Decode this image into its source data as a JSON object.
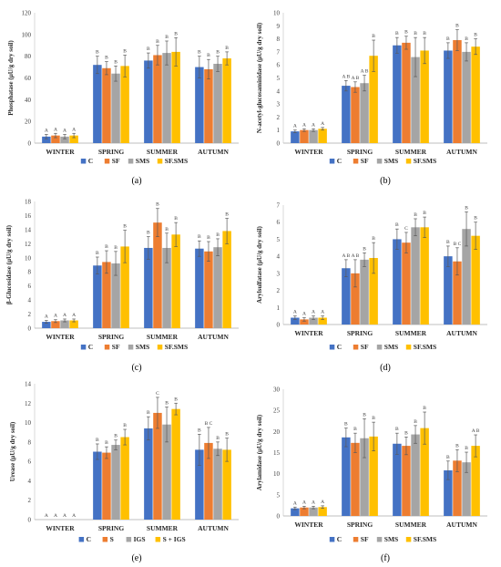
{
  "figure": {
    "colors": [
      "#4472C4",
      "#ED7D31",
      "#A5A5A5",
      "#FFC000"
    ],
    "error_bar_color": "#595959"
  },
  "chart_data": [
    {
      "type": "bar",
      "panel_label": "(a)",
      "ylabel": "Phosphatase (µU/g dry soil)",
      "ylim": [
        0,
        120
      ],
      "yticks": [
        0,
        20,
        40,
        60,
        80,
        100,
        120
      ],
      "grid": false,
      "legend_position": "bottom",
      "categories": [
        "WINTER",
        "SPRING",
        "SUMMER",
        "AUTUMN"
      ],
      "series": [
        {
          "name": "C",
          "values": [
            6,
            72,
            76,
            70
          ],
          "errors": [
            2,
            8,
            7,
            10
          ],
          "letters": [
            "A",
            "B",
            "B",
            "B"
          ]
        },
        {
          "name": "SF",
          "values": [
            7,
            69,
            81,
            68
          ],
          "errors": [
            2,
            6,
            9,
            9
          ],
          "letters": [
            "A",
            "B",
            "B",
            "B"
          ]
        },
        {
          "name": "SMS",
          "values": [
            6,
            64,
            83,
            73
          ],
          "errors": [
            2,
            7,
            11,
            7
          ],
          "letters": [
            "A",
            "B",
            "B",
            "B"
          ]
        },
        {
          "name": "SF.SMS",
          "values": [
            7,
            71,
            84,
            78
          ],
          "errors": [
            2,
            10,
            13,
            6
          ],
          "letters": [
            "A",
            "B",
            "B",
            "B"
          ]
        }
      ]
    },
    {
      "type": "bar",
      "panel_label": "(b)",
      "ylabel": "N-acetyl-glucosaminidase (µU/g dry soil)",
      "ylim": [
        0,
        10
      ],
      "yticks": [
        0,
        1,
        2,
        3,
        4,
        5,
        6,
        7,
        8,
        9,
        10
      ],
      "grid": false,
      "legend_position": "bottom",
      "categories": [
        "WINTER",
        "SPRING",
        "SUMMER",
        "AUTUMN"
      ],
      "series": [
        {
          "name": "C",
          "values": [
            0.9,
            4.4,
            7.5,
            7.1
          ],
          "errors": [
            0.1,
            0.4,
            0.6,
            0.6
          ],
          "letters": [
            "A",
            "A B",
            "B",
            "B"
          ]
        },
        {
          "name": "SF",
          "values": [
            1.0,
            4.3,
            7.7,
            7.9
          ],
          "errors": [
            0.1,
            0.4,
            0.5,
            0.8
          ],
          "letters": [
            "A",
            "A B",
            "B",
            "B"
          ]
        },
        {
          "name": "SMS",
          "values": [
            1.0,
            4.6,
            6.6,
            7.0
          ],
          "errors": [
            0.1,
            0.6,
            1.5,
            0.7
          ],
          "letters": [
            "A",
            "A B",
            "B",
            "B"
          ]
        },
        {
          "name": "SF.SMS",
          "values": [
            1.1,
            6.7,
            7.1,
            7.4
          ],
          "errors": [
            0.1,
            1.2,
            1.0,
            0.6
          ],
          "letters": [
            "A",
            "B",
            "B",
            "B"
          ]
        }
      ]
    },
    {
      "type": "bar",
      "panel_label": "(c)",
      "ylabel": "β-Glucosidase (µU/g dry soil)",
      "ylim": [
        0,
        18
      ],
      "yticks": [
        0,
        2,
        4,
        6,
        8,
        10,
        12,
        14,
        16,
        18
      ],
      "grid": false,
      "legend_position": "bottom",
      "categories": [
        "WINTER",
        "SPRING",
        "SUMMER",
        "AUTUMN"
      ],
      "series": [
        {
          "name": "C",
          "values": [
            0.9,
            8.9,
            11.4,
            11.3
          ],
          "errors": [
            0.2,
            1.2,
            1.6,
            1.1
          ],
          "letters": [
            "A",
            "B",
            "B",
            "B"
          ]
        },
        {
          "name": "SF",
          "values": [
            1.0,
            9.4,
            15.0,
            10.9
          ],
          "errors": [
            0.2,
            1.6,
            2.0,
            1.4
          ],
          "letters": [
            "A",
            "B",
            "B",
            "B"
          ]
        },
        {
          "name": "SMS",
          "values": [
            1.1,
            9.2,
            11.4,
            11.5
          ],
          "errors": [
            0.2,
            1.7,
            2.1,
            1.2
          ],
          "letters": [
            "A",
            "B",
            "B",
            "B"
          ]
        },
        {
          "name": "SF.SMS",
          "values": [
            1.1,
            11.6,
            13.3,
            13.8
          ],
          "errors": [
            0.2,
            2.3,
            1.7,
            1.8
          ],
          "letters": [
            "A",
            "B",
            "B",
            "B"
          ]
        }
      ]
    },
    {
      "type": "bar",
      "panel_label": "(d)",
      "ylabel": "Arylsulfatase (µU/g dry soil)",
      "ylim": [
        0,
        7
      ],
      "yticks": [
        0,
        1,
        2,
        3,
        4,
        5,
        6,
        7
      ],
      "grid": false,
      "legend_position": "bottom",
      "categories": [
        "WINTER",
        "SPRING",
        "SUMMER",
        "AUTUMN"
      ],
      "series": [
        {
          "name": "C",
          "values": [
            0.4,
            3.3,
            5.0,
            4.0
          ],
          "errors": [
            0.1,
            0.5,
            0.6,
            0.6
          ],
          "letters": [
            "A",
            "A B",
            "B",
            "B"
          ]
        },
        {
          "name": "SF",
          "values": [
            0.3,
            3.0,
            4.8,
            3.7
          ],
          "errors": [
            0.1,
            0.8,
            0.6,
            0.8
          ],
          "letters": [
            "A",
            "A B",
            "C",
            "B C"
          ]
        },
        {
          "name": "SMS",
          "values": [
            0.4,
            3.8,
            5.7,
            5.6
          ],
          "errors": [
            0.1,
            0.4,
            0.5,
            1.0
          ],
          "letters": [
            "A",
            "B",
            "B",
            "B"
          ]
        },
        {
          "name": "SF.SMS",
          "values": [
            0.4,
            3.9,
            5.7,
            5.2
          ],
          "errors": [
            0.1,
            0.9,
            0.6,
            0.8
          ],
          "letters": [
            "A",
            "B",
            "B",
            "B"
          ]
        }
      ]
    },
    {
      "type": "bar",
      "panel_label": "(e)",
      "ylabel": "Urease (µU/g dry soil)",
      "ylim": [
        0,
        14
      ],
      "yticks": [
        0,
        2,
        4,
        6,
        8,
        10,
        12,
        14
      ],
      "grid": false,
      "legend_position": "bottom",
      "categories": [
        "WINTER",
        "SPRING",
        "SUMMER",
        "AUTUMN"
      ],
      "series": [
        {
          "name": "C",
          "values": [
            0,
            7.0,
            9.4,
            7.2
          ],
          "errors": [
            0,
            0.8,
            1.2,
            1.6
          ],
          "letters": [
            "A",
            "B",
            "B",
            "B"
          ]
        },
        {
          "name": "S",
          "values": [
            0,
            6.9,
            11.0,
            7.9
          ],
          "errors": [
            0,
            0.6,
            1.6,
            1.6
          ],
          "letters": [
            "A",
            "B",
            "C",
            "B C"
          ]
        },
        {
          "name": "IGS",
          "values": [
            0,
            7.7,
            9.8,
            7.3
          ],
          "errors": [
            0,
            0.5,
            1.8,
            0.7
          ],
          "letters": [
            "A",
            "B",
            "B",
            "B"
          ]
        },
        {
          "name": "S + IGS",
          "values": [
            0,
            8.5,
            11.4,
            7.2
          ],
          "errors": [
            0,
            0.8,
            0.6,
            1.2
          ],
          "letters": [
            "A",
            "B",
            "B",
            "B"
          ]
        }
      ]
    },
    {
      "type": "bar",
      "panel_label": "(f)",
      "ylabel": "Arylamidase (µU/g dry soil)",
      "ylim": [
        0,
        30
      ],
      "yticks": [
        0,
        5,
        10,
        15,
        20,
        25,
        30
      ],
      "grid": false,
      "legend_position": "bottom",
      "categories": [
        "WINTER",
        "SPRING",
        "SUMMER",
        "AUTUMN"
      ],
      "series": [
        {
          "name": "C",
          "values": [
            1.8,
            18.6,
            17.1,
            10.8
          ],
          "errors": [
            0.3,
            2.2,
            2.5,
            2.2
          ],
          "letters": [
            "A",
            "B",
            "B",
            "B"
          ]
        },
        {
          "name": "SF",
          "values": [
            2.0,
            17.3,
            16.6,
            13.1
          ],
          "errors": [
            0.3,
            2.3,
            2.1,
            2.6
          ],
          "letters": [
            "A",
            "B",
            "B",
            "B"
          ]
        },
        {
          "name": "SMS",
          "values": [
            2.0,
            18.4,
            19.3,
            12.7
          ],
          "errors": [
            0.3,
            4.6,
            2.1,
            2.4
          ],
          "letters": [
            "A",
            "B",
            "B",
            "B"
          ]
        },
        {
          "name": "SF.SMS",
          "values": [
            2.1,
            18.8,
            20.8,
            16.6
          ],
          "errors": [
            0.3,
            3.4,
            3.8,
            2.6
          ],
          "letters": [
            "A",
            "B",
            "B",
            "A B"
          ]
        }
      ]
    }
  ]
}
